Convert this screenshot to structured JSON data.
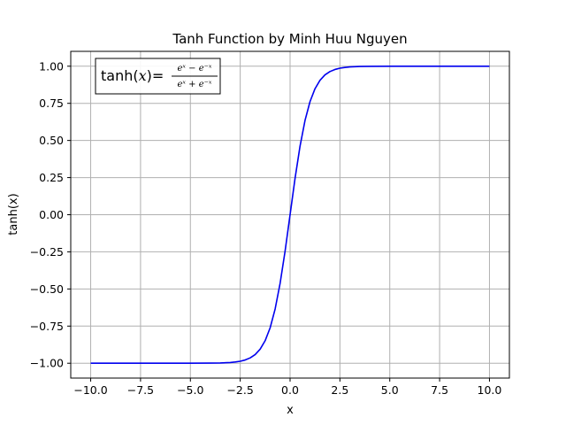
{
  "chart_data": {
    "type": "line",
    "title": "Tanh Function by Minh Huu Nguyen",
    "xlabel": "x",
    "ylabel": "tanh(x)",
    "xlim": [
      -11.0,
      11.0
    ],
    "ylim": [
      -1.1,
      1.1
    ],
    "grid": true,
    "x_ticks": [
      -10.0,
      -7.5,
      -5.0,
      -2.5,
      0.0,
      2.5,
      5.0,
      7.5,
      10.0
    ],
    "x_tick_labels": [
      "−10.0",
      "−7.5",
      "−5.0",
      "−2.5",
      "0.0",
      "2.5",
      "5.0",
      "7.5",
      "10.0"
    ],
    "y_ticks": [
      -1.0,
      -0.75,
      -0.5,
      -0.25,
      0.0,
      0.25,
      0.5,
      0.75,
      1.0
    ],
    "y_tick_labels": [
      "−1.00",
      "−0.75",
      "−0.50",
      "−0.25",
      "0.00",
      "0.25",
      "0.50",
      "0.75",
      "1.00"
    ],
    "series": [
      {
        "color": "#0000ee",
        "x": [
          -10,
          -9,
          -8,
          -7,
          -6,
          -5,
          -4,
          -3.5,
          -3,
          -2.75,
          -2.5,
          -2.25,
          -2,
          -1.75,
          -1.5,
          -1.25,
          -1,
          -0.75,
          -0.5,
          -0.25,
          0,
          0.25,
          0.5,
          0.75,
          1,
          1.25,
          1.5,
          1.75,
          2,
          2.25,
          2.5,
          2.75,
          3,
          3.5,
          4,
          5,
          6,
          7,
          8,
          9,
          10
        ],
        "y": [
          -1.0,
          -1.0,
          -1.0,
          -1.0,
          -1.0,
          -0.9999,
          -0.9993,
          -0.9982,
          -0.9951,
          -0.9918,
          -0.9866,
          -0.978,
          -0.964,
          -0.9414,
          -0.9051,
          -0.8483,
          -0.7616,
          -0.6351,
          -0.4621,
          -0.2449,
          0.0,
          0.2449,
          0.4621,
          0.6351,
          0.7616,
          0.8483,
          0.9051,
          0.9414,
          0.964,
          0.978,
          0.9866,
          0.9918,
          0.9951,
          0.9982,
          0.9993,
          0.9999,
          1.0,
          1.0,
          1.0,
          1.0,
          1.0
        ]
      }
    ],
    "annotation": {
      "fn": "tanh",
      "var": "x",
      "equals": "=",
      "numerator": "eˣ − e⁻ˣ",
      "denominator": "eˣ + e⁻ˣ",
      "placement": "top-left"
    }
  }
}
